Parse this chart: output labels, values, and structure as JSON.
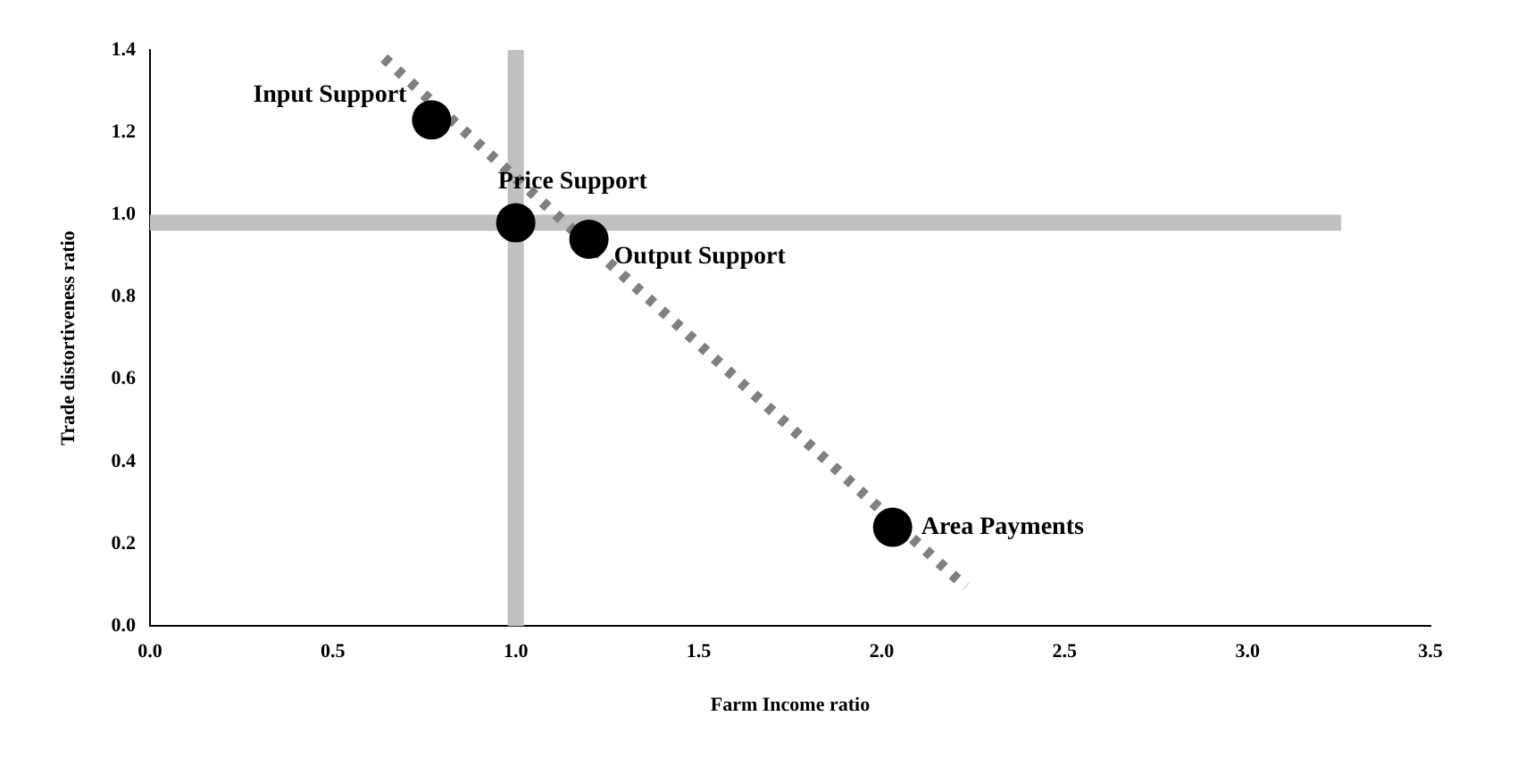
{
  "chart_data": {
    "type": "scatter",
    "xlabel": "Farm Income ratio",
    "ylabel": "Trade distortiveness ratio",
    "x": [
      0.77,
      1.0,
      1.2,
      2.03
    ],
    "values": [
      1.23,
      0.98,
      0.94,
      0.24
    ],
    "color": "#000000",
    "marker": "circle",
    "series": [
      {
        "type": "line",
        "x": [
          0.64,
          2.23
        ],
        "values": [
          1.38,
          0.095
        ],
        "color": "#808080",
        "line_style": "dotted",
        "marker": "none"
      }
    ],
    "xlim": [
      0,
      3.5
    ],
    "xticks": [
      {
        "value": 0,
        "label": "0.0"
      },
      {
        "value": 0.5,
        "label": "0.5"
      },
      {
        "value": 1,
        "label": "1.0"
      },
      {
        "value": 1.5,
        "label": "1.5"
      },
      {
        "value": 2,
        "label": "2.0"
      },
      {
        "value": 2.5,
        "label": "2.5"
      },
      {
        "value": 3,
        "label": "3.0"
      },
      {
        "value": 3.5,
        "label": "3.5"
      }
    ],
    "ylim": [
      0,
      1.4
    ],
    "yticks": [
      {
        "value": 0,
        "label": "0.0"
      },
      {
        "value": 0.2,
        "label": "0.2"
      },
      {
        "value": 0.4,
        "label": "0.4"
      },
      {
        "value": 0.6,
        "label": "0.6"
      },
      {
        "value": 0.8,
        "label": "0.8"
      },
      {
        "value": 1,
        "label": "1.0"
      },
      {
        "value": 1.2,
        "label": "1.2"
      },
      {
        "value": 1.4,
        "label": "1.4"
      }
    ],
    "ref_lines": [
      {
        "axis": "x",
        "value": 1.0,
        "color": "#c0c0c0"
      },
      {
        "axis": "y",
        "value": 0.98,
        "color": "#c0c0c0"
      }
    ],
    "annotations": [
      {
        "text": "Input Support",
        "x": 0.77,
        "y": 1.23
      },
      {
        "text": "Price Support",
        "x": 1.0,
        "y": 0.98
      },
      {
        "text": "Output Support",
        "x": 1.2,
        "y": 0.94
      },
      {
        "text": "Area Payments",
        "x": 2.03,
        "y": 0.24
      }
    ],
    "grid": false,
    "legend": false
  }
}
